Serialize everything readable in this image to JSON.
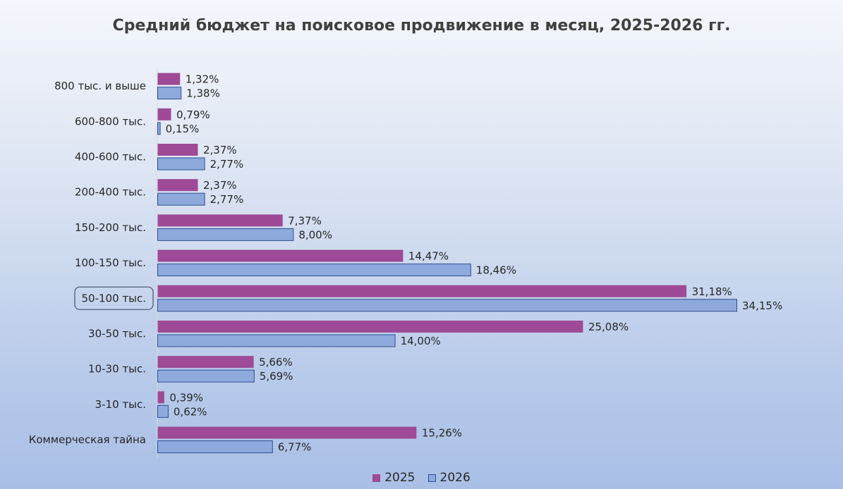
{
  "chart_data": {
    "type": "bar",
    "orientation": "horizontal",
    "title": "Средний бюджет на поисковое продвижение в месяц, 2025-2026 гг.",
    "categories": [
      "800 тыс. и выше",
      "600-800 тыс.",
      "400-600 тыс.",
      "200-400 тыс.",
      "150-200 тыс.",
      "100-150 тыс.",
      "50-100 тыс.",
      "30-50 тыс.",
      "10-30 тыс.",
      "3-10 тыс.",
      "Коммерческая тайна"
    ],
    "highlighted_category": "50-100 тыс.",
    "series": [
      {
        "name": "2025",
        "color": "#9e4a96",
        "values": [
          1.32,
          0.79,
          2.37,
          2.37,
          7.37,
          14.47,
          31.18,
          25.08,
          5.66,
          0.39,
          15.26
        ],
        "labels": [
          "1,32%",
          "0,79%",
          "2,37%",
          "2,37%",
          "7,37%",
          "14,47%",
          "31,18%",
          "25,08%",
          "5,66%",
          "0,39%",
          "15,26%"
        ]
      },
      {
        "name": "2026",
        "color": "#8eaadc",
        "border": "#2f4d8f",
        "values": [
          1.38,
          0.15,
          2.77,
          2.77,
          8.0,
          18.46,
          34.15,
          14.0,
          5.69,
          0.62,
          6.77
        ],
        "labels": [
          "1,38%",
          "0,15%",
          "2,77%",
          "2,77%",
          "8,00%",
          "18,46%",
          "34,15%",
          "14,00%",
          "5,69%",
          "0,62%",
          "6,77%"
        ]
      }
    ],
    "xlim": [
      0,
      35
    ],
    "grid": false,
    "legend_position": "bottom"
  },
  "legend": {
    "series_2025": "2025",
    "series_2026": "2026"
  }
}
